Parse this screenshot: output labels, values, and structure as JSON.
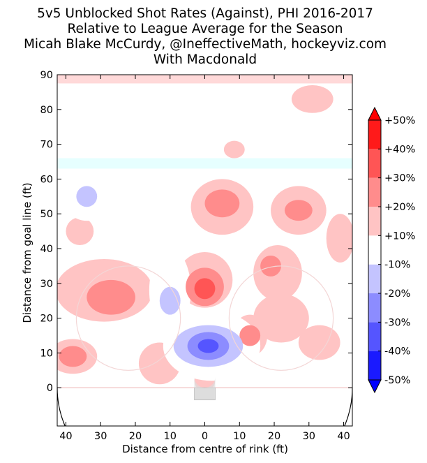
{
  "chart_data": {
    "type": "heatmap",
    "title_lines": [
      "5v5 Unblocked Shot Rates (Against), PHI 2016-2017",
      "Relative to League Average for the Season",
      "Micah Blake McCurdy, @IneffectiveMath, hockeyviz.com",
      "With Macdonald"
    ],
    "xlabel": "Distance from centre of rink (ft)",
    "ylabel": "Distance from goal line (ft)",
    "xlim": [
      -42.5,
      42.5
    ],
    "ylim": [
      -11,
      90
    ],
    "x_ticks": [
      -40,
      -30,
      -20,
      -10,
      0,
      10,
      20,
      30,
      40
    ],
    "x_tick_labels": [
      "40",
      "30",
      "20",
      "10",
      "0",
      "10",
      "20",
      "30",
      "40"
    ],
    "y_ticks": [
      0,
      10,
      20,
      30,
      40,
      50,
      60,
      70,
      80,
      90
    ],
    "y_tick_labels": [
      "0",
      "10",
      "20",
      "30",
      "40",
      "50",
      "60",
      "70",
      "80",
      "90"
    ],
    "colorbar": {
      "levels": [
        -50,
        -40,
        -30,
        -20,
        -10,
        10,
        20,
        30,
        40,
        50
      ],
      "labels": [
        "-50%",
        "-40%",
        "-30%",
        "-20%",
        "-10%",
        "+10%",
        "+20%",
        "+30%",
        "+40%",
        "+50%"
      ],
      "band_colors": [
        "#1a1aff",
        "#5555ff",
        "#8c8cff",
        "#c4c4ff",
        "#ffffff",
        "#ffc4c4",
        "#ff8c8c",
        "#ff5555",
        "#ff1a1a"
      ],
      "extend_low_color": "#0000ff",
      "extend_high_color": "#ff0000"
    },
    "regions": [
      {
        "level": 10,
        "x": 31,
        "y": 83,
        "rx": 6,
        "ry": 4
      },
      {
        "level": 10,
        "x": 8.5,
        "y": 68.5,
        "rx": 3,
        "ry": 2.5
      },
      {
        "level": 10,
        "x": -36,
        "y": 45,
        "rx": 4,
        "ry": 4
      },
      {
        "level": 10,
        "x": 5,
        "y": 52,
        "rx": 9,
        "ry": 8
      },
      {
        "level": 20,
        "x": 5,
        "y": 53,
        "rx": 5,
        "ry": 4
      },
      {
        "level": 10,
        "x": 27,
        "y": 51,
        "rx": 8,
        "ry": 7
      },
      {
        "level": 20,
        "x": 27,
        "y": 51,
        "rx": 4,
        "ry": 3
      },
      {
        "level": 10,
        "x": 39,
        "y": 43,
        "rx": 4,
        "ry": 7
      },
      {
        "level": 10,
        "x": -29,
        "y": 28,
        "rx": 14,
        "ry": 9
      },
      {
        "level": 20,
        "x": -27,
        "y": 26,
        "rx": 7,
        "ry": 5
      },
      {
        "level": 10,
        "x": 0,
        "y": 31,
        "rx": 8,
        "ry": 8
      },
      {
        "level": 20,
        "x": 0,
        "y": 29,
        "rx": 5.5,
        "ry": 5.5
      },
      {
        "level": 30,
        "x": 0,
        "y": 28.5,
        "rx": 3,
        "ry": 3
      },
      {
        "level": 10,
        "x": 21,
        "y": 33,
        "rx": 7,
        "ry": 8
      },
      {
        "level": 20,
        "x": 19,
        "y": 35,
        "rx": 3,
        "ry": 3
      },
      {
        "level": 10,
        "x": 22,
        "y": 20,
        "rx": 8,
        "ry": 7
      },
      {
        "level": 10,
        "x": 13,
        "y": 15,
        "rx": 5,
        "ry": 6
      },
      {
        "level": 20,
        "x": 13,
        "y": 15,
        "rx": 3,
        "ry": 3
      },
      {
        "level": 10,
        "x": 33,
        "y": 13,
        "rx": 6,
        "ry": 5
      },
      {
        "level": 10,
        "x": -38,
        "y": 9,
        "rx": 7,
        "ry": 5
      },
      {
        "level": 20,
        "x": -38,
        "y": 9,
        "rx": 4,
        "ry": 3
      },
      {
        "level": 10,
        "x": -13,
        "y": 7,
        "rx": 6,
        "ry": 6
      },
      {
        "level": 10,
        "x": 0,
        "y": 2,
        "rx": 3,
        "ry": 3
      },
      {
        "level": -10,
        "x": -34,
        "y": 55,
        "rx": 7,
        "ry": 7
      },
      {
        "level": -20,
        "x": -34,
        "y": 55,
        "rx": 3,
        "ry": 3
      },
      {
        "level": -10,
        "x": -10,
        "y": 28,
        "rx": 6,
        "ry": 12
      },
      {
        "level": -20,
        "x": -10,
        "y": 25,
        "rx": 3,
        "ry": 4
      },
      {
        "level": -10,
        "x": 2,
        "y": 12,
        "rx": 14,
        "ry": 10
      },
      {
        "level": -20,
        "x": 1,
        "y": 12,
        "rx": 10,
        "ry": 6
      },
      {
        "level": -30,
        "x": 1,
        "y": 12,
        "rx": 6,
        "ry": 4
      },
      {
        "level": -40,
        "x": 1,
        "y": 12,
        "rx": 3,
        "ry": 2
      }
    ]
  }
}
